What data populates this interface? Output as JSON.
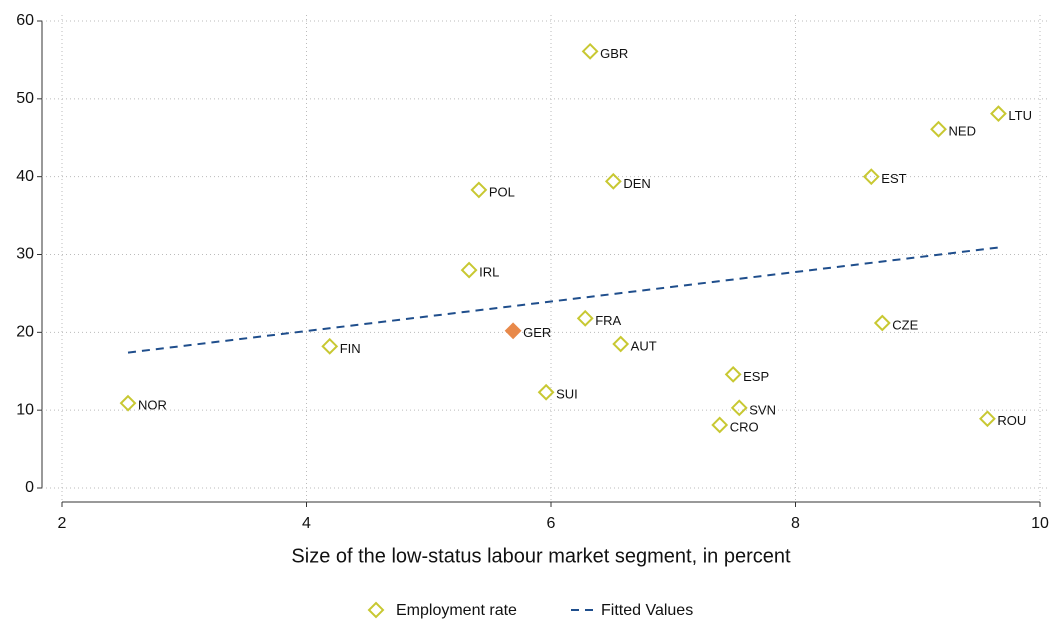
{
  "chart_data": {
    "type": "scatter",
    "xlabel": "Size of the low-status labour market segment, in percent",
    "xlim": [
      2,
      10
    ],
    "xticks": [
      2,
      4,
      6,
      8,
      10
    ],
    "ylim": [
      0,
      60
    ],
    "yticks": [
      0,
      10,
      20,
      30,
      40,
      50,
      60
    ],
    "grid": true,
    "legend": "bottom",
    "series": [
      {
        "name": "Employment rate",
        "mark": "diamond",
        "color": "#c8c832",
        "fill_color": "#e8894a",
        "x": [
          2.54,
          4.19,
          5.33,
          5.41,
          5.69,
          5.96,
          6.28,
          6.32,
          6.51,
          6.57,
          7.38,
          7.49,
          7.54,
          8.62,
          8.71,
          9.17,
          9.57,
          9.66
        ],
        "values": [
          10.9,
          18.2,
          28.0,
          38.3,
          20.2,
          12.3,
          21.8,
          56.1,
          39.4,
          18.5,
          8.1,
          14.6,
          10.3,
          40.0,
          21.2,
          46.1,
          8.9,
          48.1
        ],
        "point_labels": [
          "NOR",
          "FIN",
          "IRL",
          "POL",
          "GER",
          "SUI",
          "FRA",
          "GBR",
          "DEN",
          "AUT",
          "CRO",
          "ESP",
          "SVN",
          "EST",
          "CZE",
          "NED",
          "ROU",
          "LTU"
        ],
        "filled": [
          false,
          false,
          false,
          false,
          true,
          false,
          false,
          false,
          false,
          false,
          false,
          false,
          false,
          false,
          false,
          false,
          false,
          false
        ]
      },
      {
        "name": "Fitted Values",
        "mark": "dashed-line",
        "color": "#1f4e8c",
        "x": [
          2.54,
          9.66
        ],
        "values": [
          17.4,
          30.9
        ]
      }
    ]
  }
}
